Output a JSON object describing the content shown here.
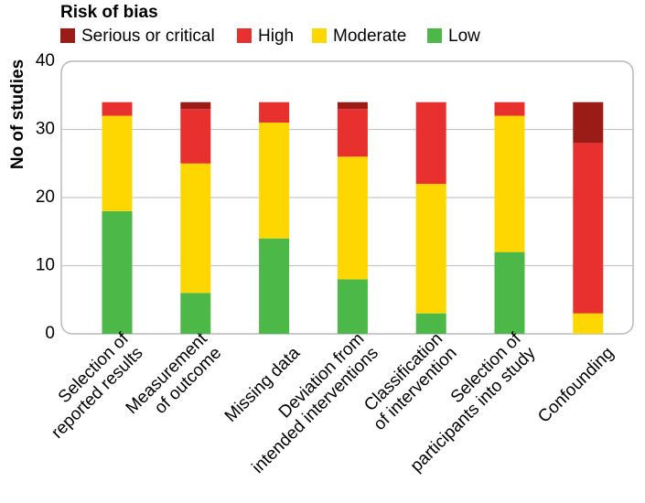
{
  "chart_data": {
    "type": "bar",
    "stacked": true,
    "legend_title": "Risk of bias",
    "ylabel": "No of studies",
    "ylim": [
      0,
      40
    ],
    "yticks": [
      0,
      10,
      20,
      30,
      40
    ],
    "categories": [
      [
        "Selection of",
        "reported results"
      ],
      [
        "Measurement",
        "of outcome"
      ],
      [
        "Missing data"
      ],
      [
        "Deviation from",
        "intended interventions"
      ],
      [
        "Classification",
        "of intervention"
      ],
      [
        "Selection of",
        "participants into study"
      ],
      [
        "Confounding"
      ]
    ],
    "series": [
      {
        "name": "Low",
        "color": "#4cb848",
        "values": [
          18,
          6,
          14,
          8,
          3,
          12,
          0
        ]
      },
      {
        "name": "Moderate",
        "color": "#ffd700",
        "values": [
          14,
          19,
          17,
          18,
          19,
          20,
          3
        ]
      },
      {
        "name": "High",
        "color": "#e8302e",
        "values": [
          2,
          8,
          3,
          7,
          12,
          2,
          25
        ]
      },
      {
        "name": "Serious or critical",
        "color": "#9b1b17",
        "values": [
          0,
          1,
          0,
          1,
          0,
          0,
          6
        ]
      }
    ],
    "legend_order": [
      "Serious or critical",
      "High",
      "Moderate",
      "Low"
    ]
  }
}
